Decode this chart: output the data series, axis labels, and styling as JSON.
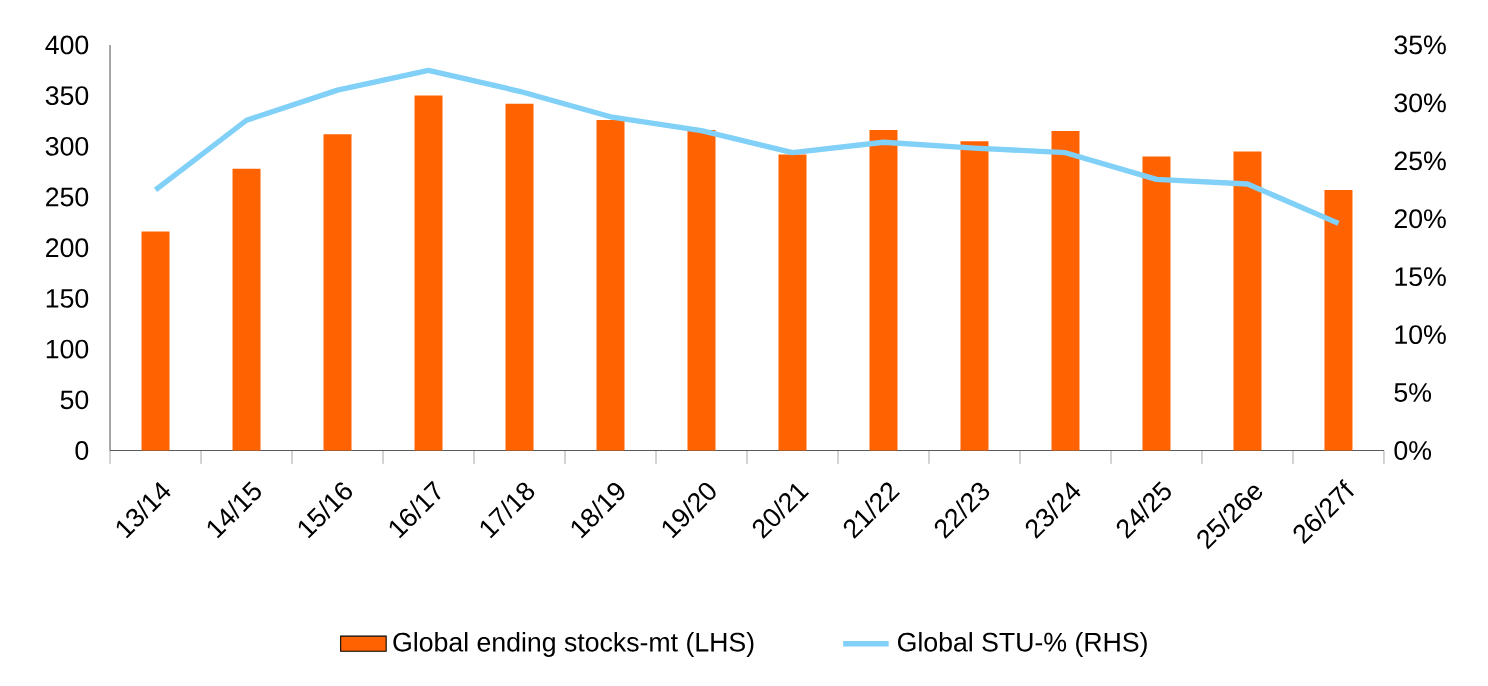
{
  "chart_data": {
    "type": "bar",
    "categories": [
      "13/14",
      "14/15",
      "15/16",
      "16/17",
      "17/18",
      "18/19",
      "19/20",
      "20/21",
      "21/22",
      "22/23",
      "23/24",
      "24/25",
      "25/26e",
      "26/27f"
    ],
    "series": [
      {
        "name": "Global ending stocks-mt (LHS)",
        "color": "#ff6200",
        "values": [
          216,
          278,
          312,
          350,
          342,
          326,
          316,
          292,
          316,
          305,
          315,
          290,
          295,
          257
        ]
      },
      {
        "name": "Global STU-% (RHS)",
        "type": "line",
        "axis": "y2",
        "color": "#80d0f8",
        "values": [
          22.5,
          28.5,
          31.1,
          32.8,
          31.0,
          28.8,
          27.6,
          25.7,
          26.6,
          26.1,
          25.7,
          23.4,
          23.0,
          19.6
        ]
      }
    ],
    "ylim": [
      0,
      400
    ],
    "yticks": [
      0,
      50,
      100,
      150,
      200,
      250,
      300,
      350,
      400
    ],
    "y2lim": [
      0,
      35
    ],
    "y2ticks": [
      {
        "value": 0,
        "label": "0%"
      },
      {
        "value": 5,
        "label": "5%"
      },
      {
        "value": 10,
        "label": "10%"
      },
      {
        "value": 15,
        "label": "15%"
      },
      {
        "value": 20,
        "label": "20%"
      },
      {
        "value": 25,
        "label": "25%"
      },
      {
        "value": 30,
        "label": "30%"
      },
      {
        "value": 35,
        "label": "35%"
      }
    ],
    "legend": "bottom",
    "grid": false,
    "marker": "none",
    "line_style": "solid"
  }
}
